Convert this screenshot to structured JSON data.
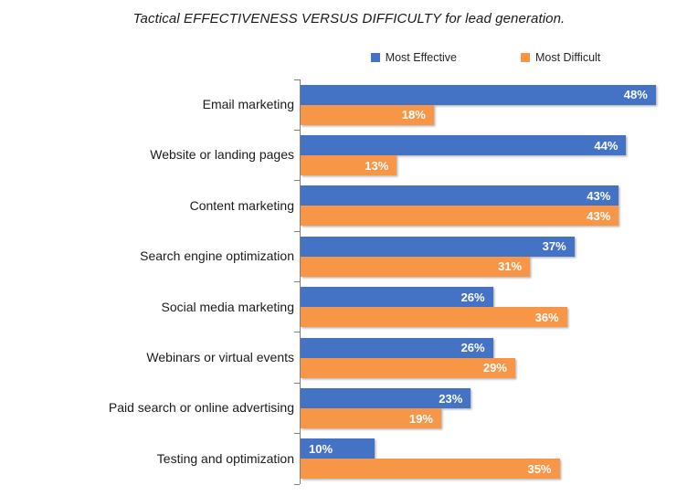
{
  "chart_data": {
    "type": "bar",
    "orientation": "horizontal",
    "title": "Tactical EFFECTIVENESS VERSUS DIFFICULTY for lead generation.",
    "categories": [
      "Email marketing",
      "Website or landing pages",
      "Content marketing",
      "Search engine optimization",
      "Social media marketing",
      "Webinars or virtual events",
      "Paid search or online advertising",
      "Testing and optimization"
    ],
    "series": [
      {
        "name": "Most Effective",
        "color": "#4472C4",
        "values": [
          48,
          44,
          43,
          37,
          26,
          26,
          23,
          10
        ],
        "label_inside_base_indexes": [
          7
        ]
      },
      {
        "name": "Most Difficult",
        "color": "#F79646",
        "values": [
          18,
          13,
          43,
          31,
          36,
          29,
          19,
          35
        ],
        "label_inside_base_indexes": []
      }
    ],
    "xlim": [
      0,
      50
    ],
    "value_suffix": "%",
    "data_labels": "inside-end",
    "data_label_color": "#FFFFFF",
    "legend_position": "top",
    "axis_color": "#808080",
    "grid": false
  }
}
